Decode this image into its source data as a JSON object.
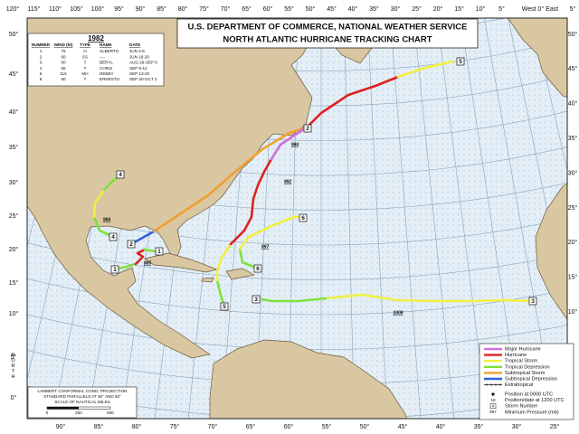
{
  "header": {
    "title_lines": [
      "U.S. DEPARTMENT OF COMMERCE, NATIONAL WEATHER SERVICE",
      "NORTH ATLANTIC HURRICANE TRACKING CHART"
    ],
    "year": "1982"
  },
  "storm_table": {
    "columns": [
      "NUMBER",
      "WIND (kt)",
      "TYPE",
      "NAME",
      "DATE"
    ],
    "rows": [
      [
        "1",
        "75",
        "H",
        "ALBERTO",
        "JUN 2-6"
      ],
      [
        "2",
        "60",
        "SS",
        "----",
        "JUN 18-20"
      ],
      [
        "3",
        "60",
        "T",
        "BERYL",
        "AUG 28-SEP 6"
      ],
      [
        "4",
        "55",
        "T",
        "CHRIS",
        "SEP 9-12"
      ],
      [
        "5",
        "115",
        "MH",
        "DEBBY",
        "SEP 13-20"
      ],
      [
        "6",
        "60",
        "T",
        "ERNESTO",
        "SEP 30-OCT 2"
      ]
    ]
  },
  "legend": {
    "track_types": [
      "Major Hurricane",
      "Hurricane",
      "Tropical Storm",
      "Tropical Depression",
      "Subtropical Storm",
      "Subtropical Depression",
      "Extratropical"
    ],
    "symbols": [
      "Position at 0000 UTC",
      "Position/date at 1200 UTC",
      "Storm Number",
      "Minimum Pressure (mb)"
    ],
    "symbol_samples": [
      "18",
      "#",
      "997"
    ]
  },
  "pressure_labels": [
    "994",
    "984",
    "992",
    "997",
    "985",
    "1008"
  ],
  "projection_note": {
    "lines": [
      "LAMBERT CONFORMAL CONIC PROJECTION",
      "STANDARD PARALLELS AT 30° AND 60°"
    ],
    "scale_title": "SCALE OF NAUTICAL MILES",
    "scale_ticks": [
      "0",
      "250",
      "500"
    ]
  },
  "longitude_labels_top": [
    "120°",
    "115°",
    "110°",
    "105°",
    "100°",
    "95°",
    "90°",
    "85°",
    "80°",
    "75°",
    "70°",
    "65°",
    "60°",
    "55°",
    "50°",
    "45°",
    "40°",
    "35°",
    "30°",
    "25°",
    "20°",
    "15°",
    "10°",
    "5°",
    "West 0° East",
    "5°"
  ],
  "longitude_labels_bottom": [
    "90°",
    "85°",
    "80°",
    "75°",
    "70°",
    "65°",
    "60°",
    "55°",
    "50°",
    "45°",
    "40°",
    "35°",
    "30°",
    "25°"
  ],
  "latitude_labels_left": [
    "50°",
    "45°",
    "40°",
    "35°",
    "30°",
    "25°",
    "20°",
    "15°",
    "10°",
    "5°",
    "0°"
  ],
  "latitude_labels_right": [
    "50°",
    "45°",
    "40°",
    "35°",
    "30°",
    "25°",
    "20°",
    "15°",
    "10°"
  ],
  "equator_label": "NORTH"
}
